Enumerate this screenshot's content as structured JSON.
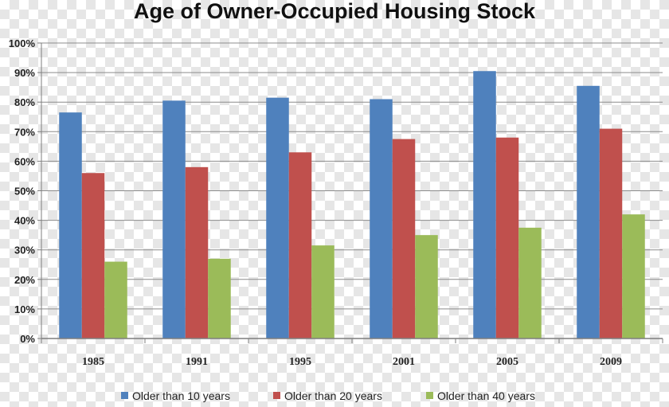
{
  "chart_data": {
    "type": "bar",
    "title": "Age of Owner-Occupied Housing Stock",
    "xlabel": "",
    "ylabel": "",
    "categories": [
      "1985",
      "1991",
      "1995",
      "2001",
      "2005",
      "2009"
    ],
    "series": [
      {
        "name": "Older than 10 years",
        "color": "#4f81bd",
        "values": [
          76.5,
          80.5,
          81.5,
          81,
          90.5,
          85.5
        ]
      },
      {
        "name": "Older than 20 years",
        "color": "#c0504d",
        "values": [
          56,
          58,
          63,
          67.5,
          68,
          71
        ]
      },
      {
        "name": "Older than 40 years",
        "color": "#9bbb59",
        "values": [
          26,
          27,
          31.5,
          35,
          37.5,
          42
        ]
      }
    ],
    "ylim": [
      0,
      100
    ],
    "yticks": [
      "0%",
      "10%",
      "20%",
      "30%",
      "40%",
      "50%",
      "60%",
      "70%",
      "80%",
      "90%",
      "100%"
    ],
    "grid": true,
    "legend_position": "bottom"
  }
}
